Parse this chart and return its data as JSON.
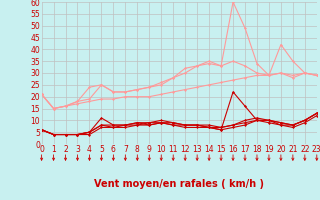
{
  "background_color": "#c8f0f0",
  "grid_color": "#c0c0c0",
  "xlabel": "Vent moyen/en rafales ( km/h )",
  "xlim": [
    0,
    23
  ],
  "ylim": [
    0,
    60
  ],
  "yticks": [
    0,
    5,
    10,
    15,
    20,
    25,
    30,
    35,
    40,
    45,
    50,
    55,
    60
  ],
  "xticks": [
    0,
    1,
    2,
    3,
    4,
    5,
    6,
    7,
    8,
    9,
    10,
    11,
    12,
    13,
    14,
    15,
    16,
    17,
    18,
    19,
    20,
    21,
    22,
    23
  ],
  "x": [
    0,
    1,
    2,
    3,
    4,
    5,
    6,
    7,
    8,
    9,
    10,
    11,
    12,
    13,
    14,
    15,
    16,
    17,
    18,
    19,
    20,
    21,
    22,
    23
  ],
  "lines_dark": [
    [
      6,
      4,
      4,
      4,
      4,
      7,
      7,
      7,
      8,
      9,
      9,
      8,
      7,
      7,
      7,
      6,
      22,
      16,
      10,
      9,
      8,
      8,
      10,
      13
    ],
    [
      6,
      4,
      4,
      4,
      5,
      8,
      7,
      8,
      8,
      8,
      9,
      9,
      8,
      8,
      7,
      6,
      7,
      8,
      10,
      10,
      8,
      7,
      9,
      12
    ],
    [
      6,
      4,
      4,
      4,
      5,
      11,
      8,
      8,
      9,
      9,
      10,
      9,
      8,
      8,
      8,
      7,
      8,
      10,
      11,
      10,
      9,
      8,
      10,
      13
    ],
    [
      6,
      4,
      4,
      4,
      5,
      8,
      8,
      8,
      9,
      8,
      9,
      8,
      8,
      8,
      7,
      7,
      8,
      9,
      10,
      10,
      9,
      8,
      10,
      13
    ]
  ],
  "lines_light": [
    [
      21,
      15,
      16,
      17,
      18,
      19,
      19,
      20,
      20,
      20,
      21,
      22,
      23,
      24,
      25,
      26,
      27,
      28,
      29,
      29,
      30,
      29,
      30,
      29
    ],
    [
      21,
      15,
      16,
      18,
      19,
      25,
      22,
      22,
      23,
      24,
      26,
      28,
      32,
      33,
      35,
      33,
      60,
      49,
      34,
      29,
      42,
      35,
      30,
      29
    ],
    [
      21,
      15,
      16,
      18,
      24,
      25,
      22,
      22,
      23,
      24,
      25,
      28,
      30,
      33,
      34,
      33,
      35,
      33,
      30,
      29,
      30,
      28,
      30,
      29
    ]
  ],
  "dark_color": "#cc0000",
  "light_color": "#ff9999",
  "marker": "D",
  "marker_size": 1.5,
  "line_width": 0.8,
  "arrow_color": "#cc0000",
  "tick_label_color": "#cc0000",
  "tick_label_fontsize": 5.5,
  "xlabel_fontsize": 7
}
